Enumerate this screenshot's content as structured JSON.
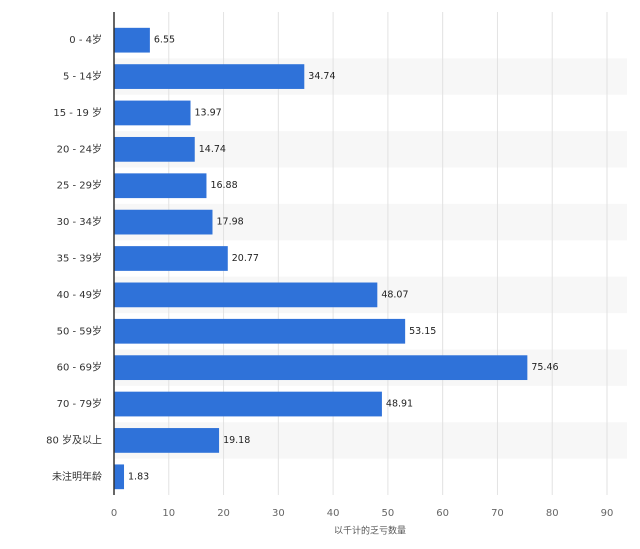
{
  "chart_data": {
    "type": "bar",
    "orientation": "horizontal",
    "categories": [
      "0 - 4岁",
      "5 - 14岁",
      "15 - 19 岁",
      "20 - 24岁",
      "25 - 29岁",
      "30 - 34岁",
      "35 - 39岁",
      "40 - 49岁",
      "50 - 59岁",
      "60 - 69岁",
      "70 - 79岁",
      "80 岁及以上",
      "未注明年龄"
    ],
    "values": [
      6.55,
      34.74,
      13.97,
      14.74,
      16.88,
      17.98,
      20.77,
      48.07,
      53.15,
      75.46,
      48.91,
      19.18,
      1.83
    ],
    "color": "#2f72d9",
    "xlabel": "以千计的乏亏数量",
    "xlim": [
      0,
      90
    ],
    "xticks": [
      0,
      10,
      20,
      30,
      40,
      50,
      60,
      70,
      80,
      90
    ],
    "grid": true
  }
}
